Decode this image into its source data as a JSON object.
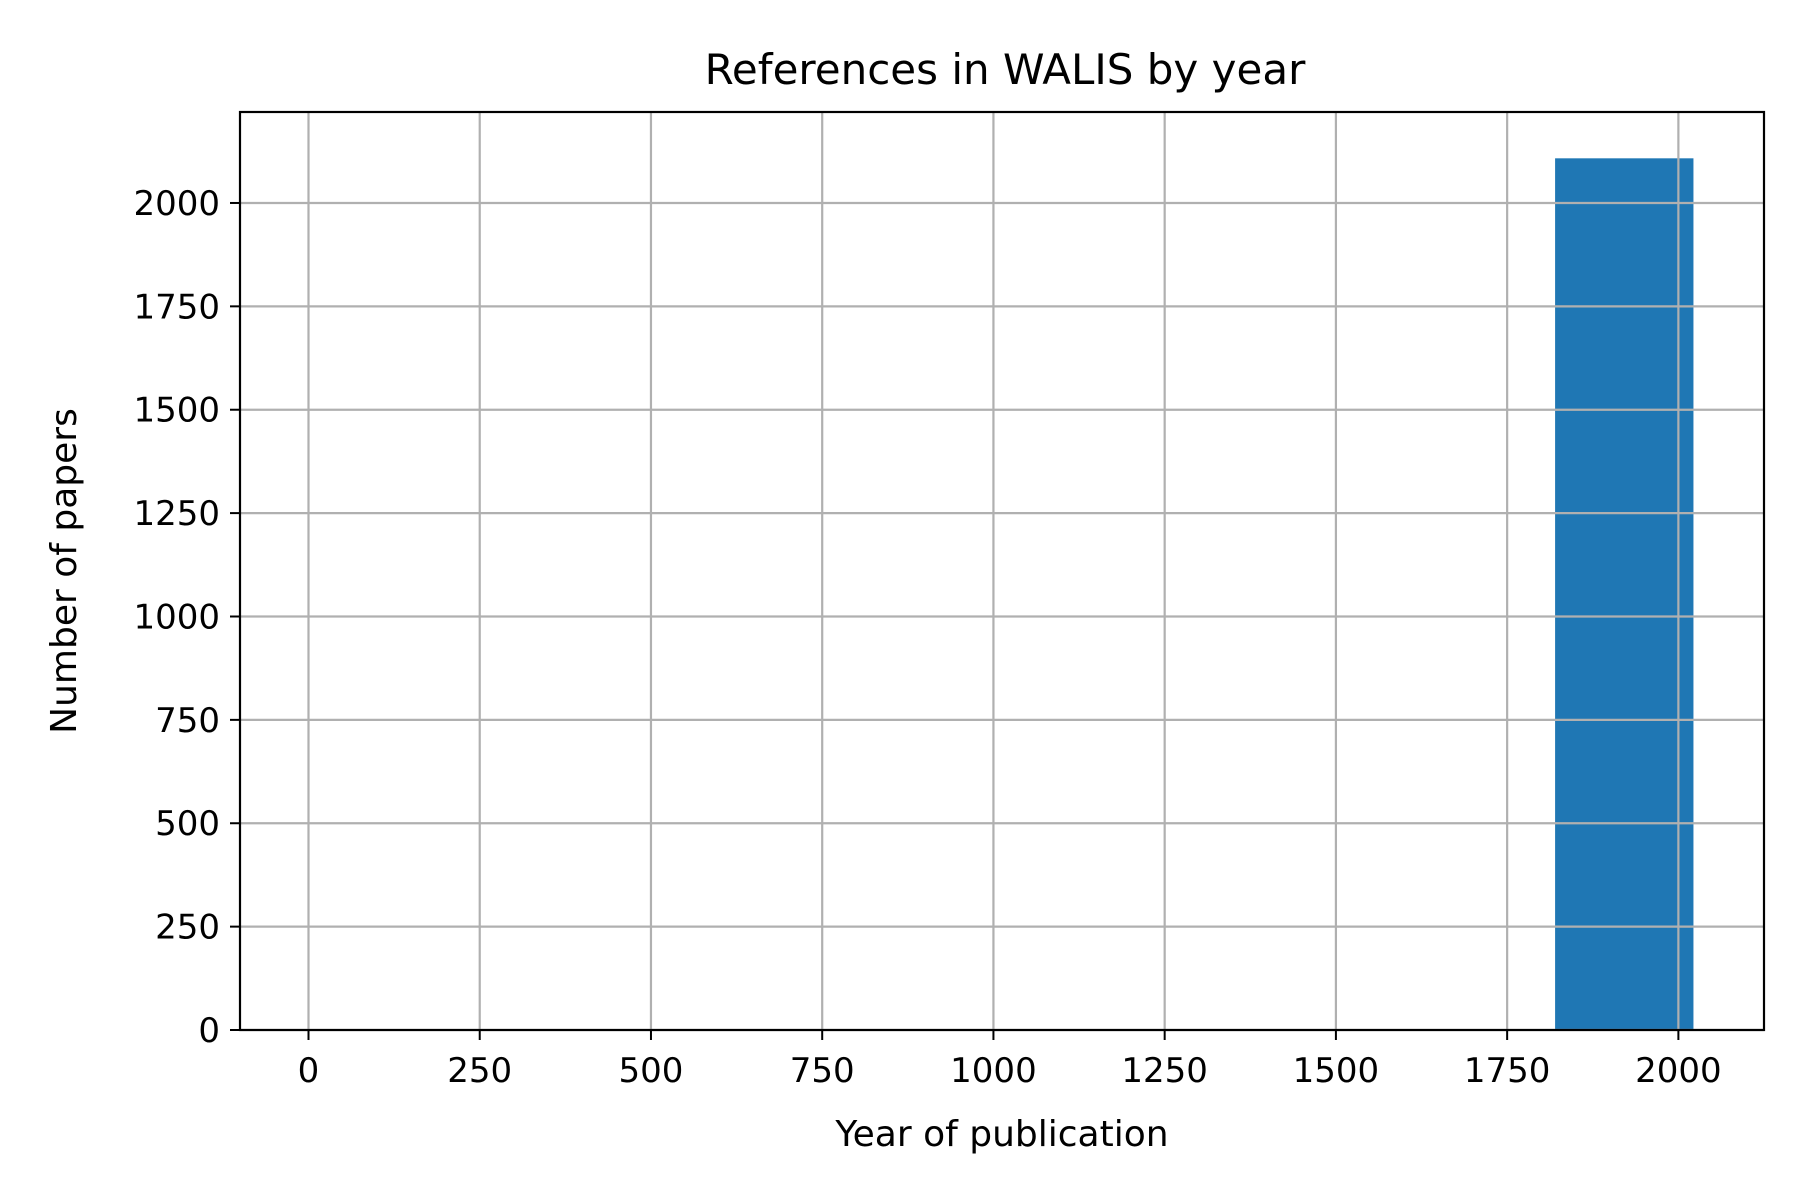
{
  "chart_data": {
    "type": "bar",
    "title": "References in WALIS by year",
    "xlabel": "Year of publication",
    "ylabel": "Number of papers",
    "xlim": [
      -100,
      2125
    ],
    "ylim": [
      0,
      2220
    ],
    "xticks": [
      0,
      250,
      500,
      750,
      1000,
      1250,
      1500,
      1750,
      2000
    ],
    "yticks": [
      0,
      250,
      500,
      750,
      1000,
      1250,
      1500,
      1750,
      2000
    ],
    "grid": true,
    "bars": [
      {
        "x_start": 1820,
        "x_end": 2022,
        "value": 2108
      }
    ],
    "colors": {
      "bar": "#1f77b4",
      "grid": "#b0b0b0",
      "axes": "#000000"
    }
  }
}
